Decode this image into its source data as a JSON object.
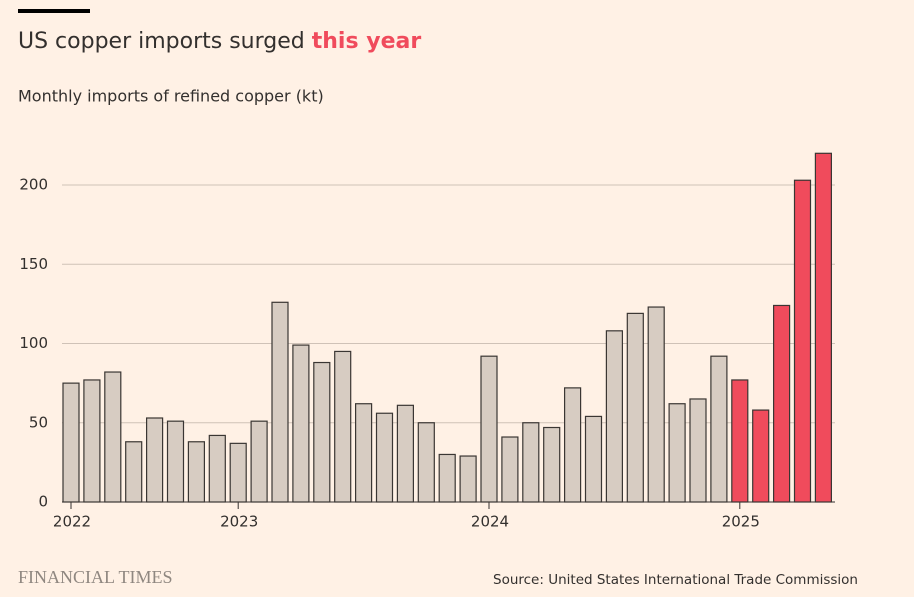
{
  "chart_data": {
    "type": "bar",
    "title": "US copper imports surged",
    "title_highlight": "this year",
    "subtitle": "Monthly imports of refined copper (kt)",
    "source": "Source: United States International Trade Commission",
    "brand": "FINANCIAL TIMES",
    "categories": [
      "2022",
      null,
      null,
      null,
      null,
      null,
      null,
      null,
      "2023",
      null,
      null,
      null,
      null,
      null,
      null,
      null,
      null,
      null,
      null,
      null,
      "2024",
      null,
      null,
      null,
      null,
      null,
      null,
      null,
      null,
      null,
      null,
      null,
      "2025",
      null,
      null,
      null,
      null
    ],
    "values": [
      75,
      77,
      82,
      38,
      53,
      51,
      38,
      42,
      37,
      51,
      126,
      99,
      88,
      95,
      62,
      56,
      61,
      50,
      30,
      29,
      92,
      41,
      50,
      47,
      72,
      54,
      108,
      119,
      123,
      62,
      65,
      92,
      77,
      58,
      124,
      203,
      220
    ],
    "colors": [
      "#d7ccc2",
      "#d7ccc2",
      "#d7ccc2",
      "#d7ccc2",
      "#d7ccc2",
      "#d7ccc2",
      "#d7ccc2",
      "#d7ccc2",
      "#d7ccc2",
      "#d7ccc2",
      "#d7ccc2",
      "#d7ccc2",
      "#d7ccc2",
      "#d7ccc2",
      "#d7ccc2",
      "#d7ccc2",
      "#d7ccc2",
      "#d7ccc2",
      "#d7ccc2",
      "#d7ccc2",
      "#d7ccc2",
      "#d7ccc2",
      "#d7ccc2",
      "#d7ccc2",
      "#d7ccc2",
      "#d7ccc2",
      "#d7ccc2",
      "#d7ccc2",
      "#d7ccc2",
      "#d7ccc2",
      "#d7ccc2",
      "#d7ccc2",
      "#f04b5c",
      "#f04b5c",
      "#f04b5c",
      "#f04b5c",
      "#f04b5c"
    ],
    "ylim": [
      0,
      230
    ],
    "yticks": [
      0,
      50,
      100,
      150,
      200
    ],
    "grid": true
  }
}
